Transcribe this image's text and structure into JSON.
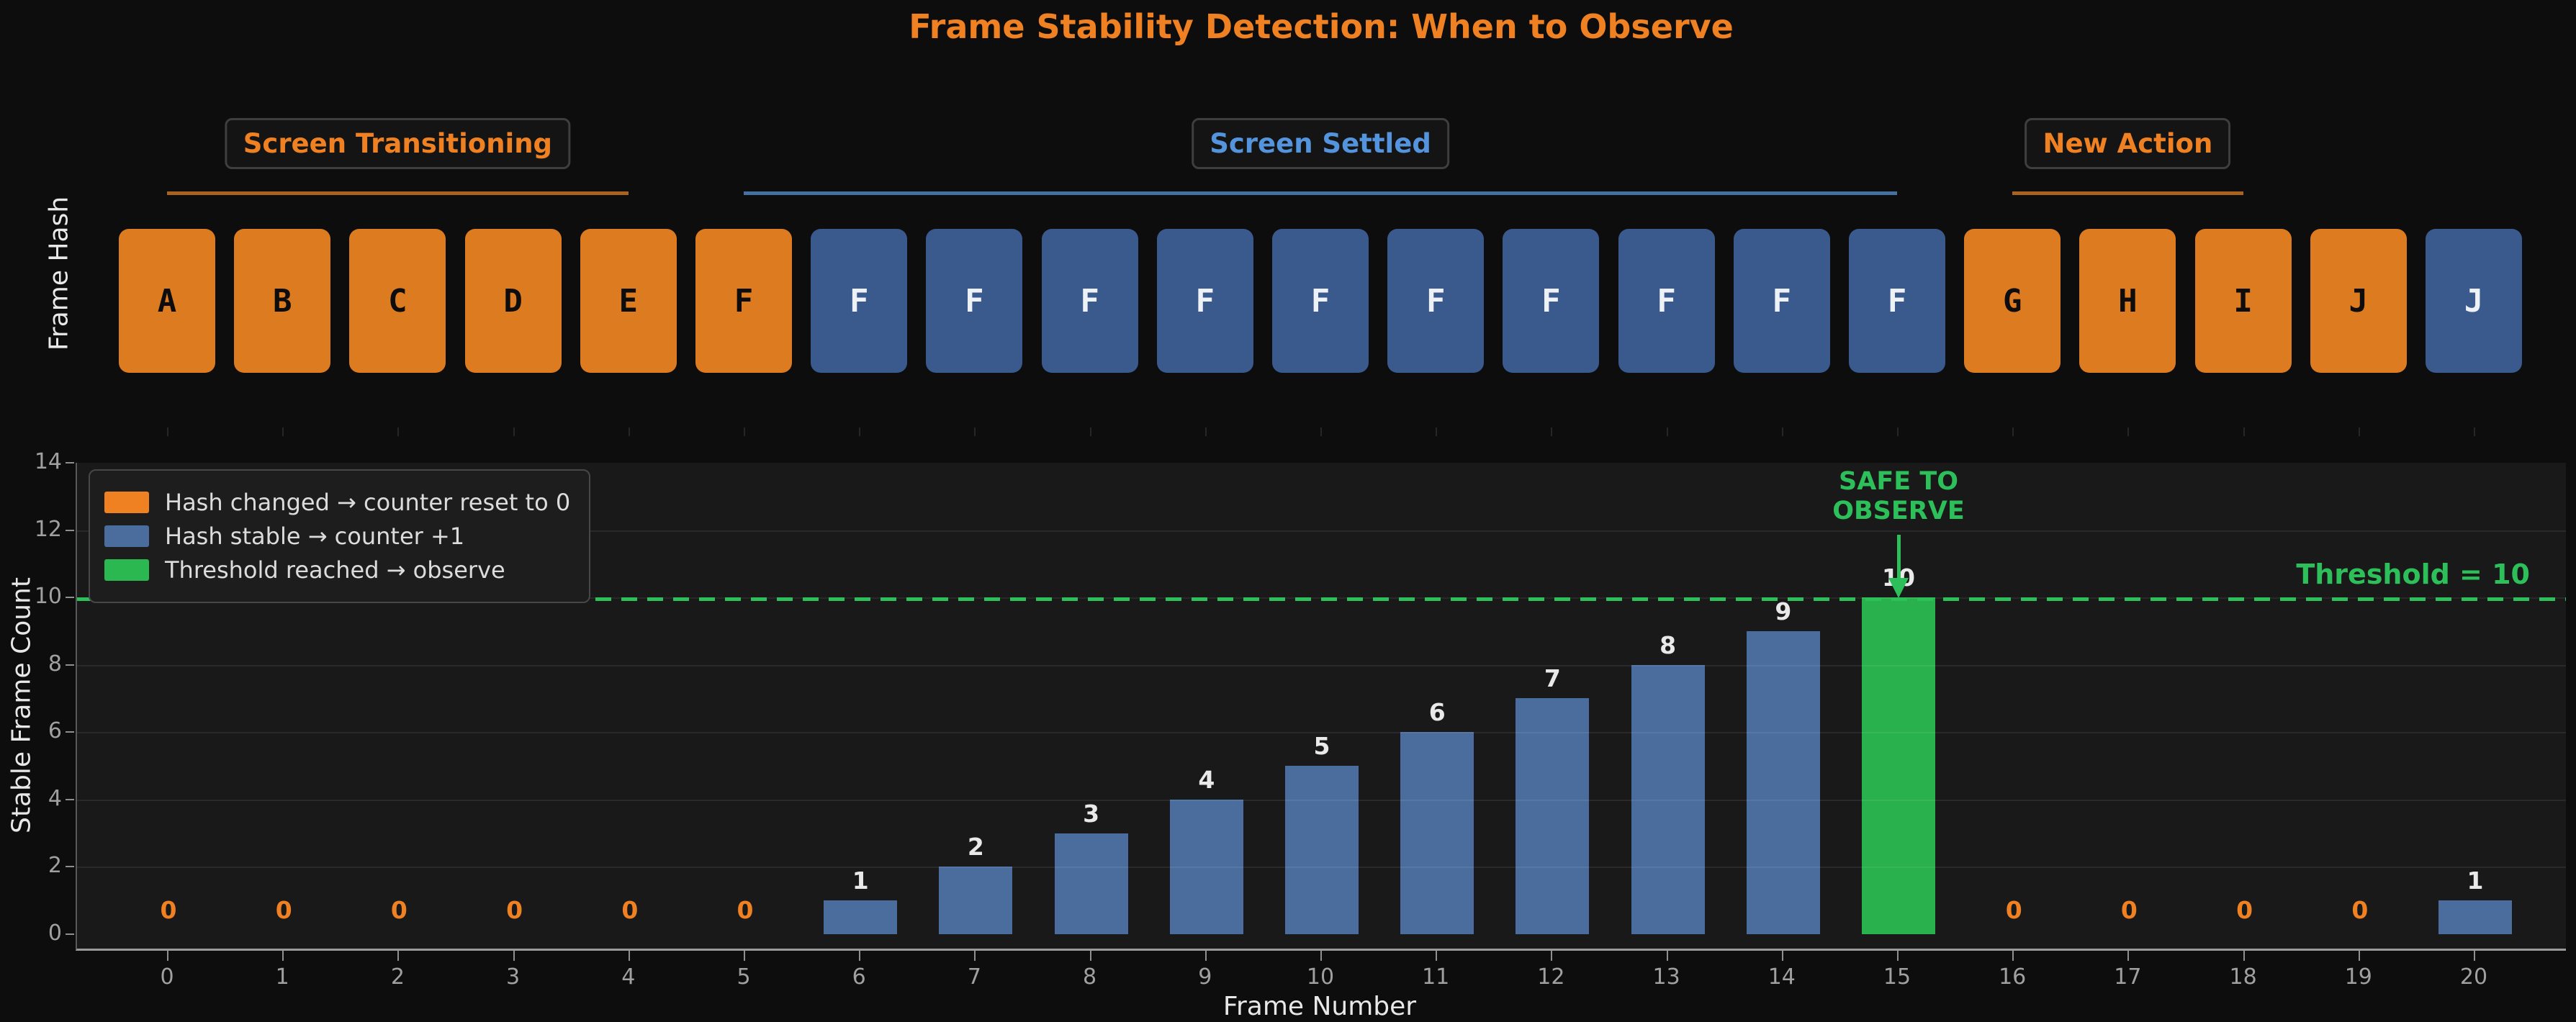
{
  "title": "Frame Stability Detection: When to Observe",
  "colors": {
    "orange_text": "#ef8122",
    "orange_box": "#dd7b20",
    "orange_line": "#a8641f",
    "blue_text": "#5494dd",
    "blue_box": "#3a5a8e",
    "blue_bar": "#4a6d9e",
    "blue_line": "#44719f",
    "green_text": "#2dc05a",
    "green_bar": "#29b14d",
    "green_swatch": "#2bb850",
    "letter_on_orange": "#0d0d0d",
    "letter_on_blue": "#eef2f7"
  },
  "hash_row": {
    "ylabel": "Frame Hash",
    "frames": [
      {
        "frame": 0,
        "hash": "A",
        "state": "changed"
      },
      {
        "frame": 1,
        "hash": "B",
        "state": "changed"
      },
      {
        "frame": 2,
        "hash": "C",
        "state": "changed"
      },
      {
        "frame": 3,
        "hash": "D",
        "state": "changed"
      },
      {
        "frame": 4,
        "hash": "E",
        "state": "changed"
      },
      {
        "frame": 5,
        "hash": "F",
        "state": "changed"
      },
      {
        "frame": 6,
        "hash": "F",
        "state": "stable"
      },
      {
        "frame": 7,
        "hash": "F",
        "state": "stable"
      },
      {
        "frame": 8,
        "hash": "F",
        "state": "stable"
      },
      {
        "frame": 9,
        "hash": "F",
        "state": "stable"
      },
      {
        "frame": 10,
        "hash": "F",
        "state": "stable"
      },
      {
        "frame": 11,
        "hash": "F",
        "state": "stable"
      },
      {
        "frame": 12,
        "hash": "F",
        "state": "stable"
      },
      {
        "frame": 13,
        "hash": "F",
        "state": "stable"
      },
      {
        "frame": 14,
        "hash": "F",
        "state": "stable"
      },
      {
        "frame": 15,
        "hash": "F",
        "state": "stable"
      },
      {
        "frame": 16,
        "hash": "G",
        "state": "changed"
      },
      {
        "frame": 17,
        "hash": "H",
        "state": "changed"
      },
      {
        "frame": 18,
        "hash": "I",
        "state": "changed"
      },
      {
        "frame": 19,
        "hash": "J",
        "state": "changed"
      },
      {
        "frame": 20,
        "hash": "J",
        "state": "stable"
      }
    ],
    "zones": [
      {
        "label": "Screen Transitioning",
        "color_key": "orange",
        "start": 0,
        "end": 4,
        "label_frame": 2
      },
      {
        "label": "Screen Settled",
        "color_key": "blue",
        "start": 5,
        "end": 15,
        "label_frame": 10
      },
      {
        "label": "New Action",
        "color_key": "orange",
        "start": 16,
        "end": 18,
        "label_frame": 17
      }
    ]
  },
  "chart_data": {
    "type": "bar",
    "x": [
      0,
      1,
      2,
      3,
      4,
      5,
      6,
      7,
      8,
      9,
      10,
      11,
      12,
      13,
      14,
      15,
      16,
      17,
      18,
      19,
      20
    ],
    "values": [
      0,
      0,
      0,
      0,
      0,
      0,
      1,
      2,
      3,
      4,
      5,
      6,
      7,
      8,
      9,
      10,
      0,
      0,
      0,
      0,
      1
    ],
    "bar_states": [
      "zero",
      "zero",
      "zero",
      "zero",
      "zero",
      "zero",
      "stable",
      "stable",
      "stable",
      "stable",
      "stable",
      "stable",
      "stable",
      "stable",
      "stable",
      "threshold",
      "zero",
      "zero",
      "zero",
      "zero",
      "stable"
    ],
    "xlabel": "Frame Number",
    "ylabel": "Stable Frame Count",
    "ylim": [
      0,
      14
    ],
    "yticks": [
      0,
      2,
      4,
      6,
      8,
      10,
      12,
      14
    ],
    "grid": true,
    "legend_position": "upper left",
    "threshold": {
      "value": 10,
      "label": "Threshold = 10"
    },
    "annotation": {
      "lines": [
        "SAFE TO",
        "OBSERVE"
      ],
      "frame": 15
    },
    "legend": [
      {
        "label": "Hash changed → counter reset to 0",
        "color_key": "orange_swatch"
      },
      {
        "label": "Hash stable → counter +1",
        "color_key": "blue_swatch"
      },
      {
        "label": "Threshold reached → observe",
        "color_key": "green_swatch"
      }
    ]
  }
}
